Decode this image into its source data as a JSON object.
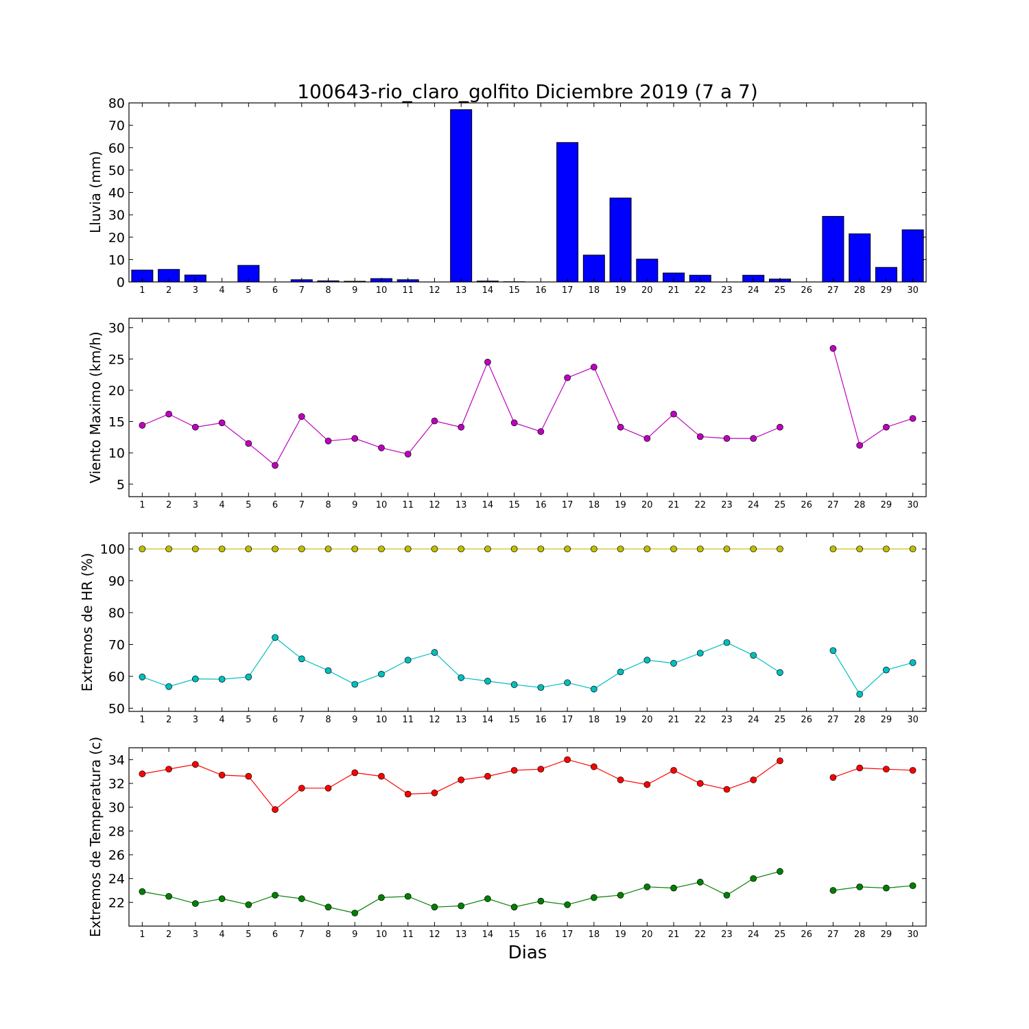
{
  "figure": {
    "title": "100643-rio_claro_golfito Diciembre 2019  (7 a 7)",
    "xlabel": "Dias"
  },
  "chart_data": [
    {
      "type": "bar",
      "ylabel": "Lluvia (mm)",
      "ylim": [
        0,
        80
      ],
      "yticks": [
        0,
        10,
        20,
        30,
        40,
        50,
        60,
        70,
        80
      ],
      "categories": [
        1,
        2,
        3,
        4,
        5,
        6,
        7,
        8,
        9,
        10,
        11,
        12,
        13,
        14,
        15,
        16,
        17,
        18,
        19,
        20,
        21,
        22,
        23,
        24,
        25,
        26,
        27,
        28,
        29,
        30
      ],
      "series": [
        {
          "color": "#0000ff",
          "values": [
            5.3,
            5.6,
            3.1,
            0,
            7.4,
            0,
            1.0,
            0.5,
            0.3,
            1.5,
            1.0,
            0,
            77.0,
            0.4,
            0.1,
            0,
            62.3,
            12.0,
            37.5,
            10.2,
            4.0,
            3.0,
            0,
            3.0,
            1.3,
            0,
            29.3,
            21.5,
            6.5,
            23.3
          ]
        }
      ]
    },
    {
      "type": "line",
      "ylabel": "Viento Maximo (km/h)",
      "ylim": [
        3,
        31.5
      ],
      "yticks": [
        5,
        10,
        15,
        20,
        25,
        30
      ],
      "x": [
        1,
        2,
        3,
        4,
        5,
        6,
        7,
        8,
        9,
        10,
        11,
        12,
        13,
        14,
        15,
        16,
        17,
        18,
        19,
        20,
        21,
        22,
        23,
        24,
        25,
        26,
        27,
        28,
        29,
        30
      ],
      "series": [
        {
          "color": "#bf00bf",
          "values": [
            14.4,
            16.2,
            14.1,
            14.8,
            11.5,
            8.0,
            15.8,
            11.9,
            12.3,
            10.8,
            9.8,
            15.1,
            14.1,
            24.5,
            14.8,
            13.4,
            22.0,
            23.7,
            14.1,
            12.3,
            16.2,
            12.6,
            12.3,
            12.3,
            14.1,
            null,
            26.7,
            11.2,
            14.1,
            15.5
          ]
        }
      ]
    },
    {
      "type": "line",
      "ylabel": "Extremos de HR (%)",
      "ylim": [
        49,
        105
      ],
      "yticks": [
        50,
        60,
        70,
        80,
        90,
        100
      ],
      "x": [
        1,
        2,
        3,
        4,
        5,
        6,
        7,
        8,
        9,
        10,
        11,
        12,
        13,
        14,
        15,
        16,
        17,
        18,
        19,
        20,
        21,
        22,
        23,
        24,
        25,
        26,
        27,
        28,
        29,
        30
      ],
      "series": [
        {
          "color": "#bfbf00",
          "values": [
            100,
            100,
            100,
            100,
            100,
            100,
            100,
            100,
            100,
            100,
            100,
            100,
            100,
            100,
            100,
            100,
            100,
            100,
            100,
            100,
            100,
            100,
            100,
            100,
            100,
            null,
            100,
            100,
            100,
            100
          ]
        },
        {
          "color": "#00bfbf",
          "values": [
            59.8,
            56.8,
            59.2,
            59.1,
            59.8,
            72.2,
            65.5,
            61.8,
            57.5,
            60.7,
            65.1,
            67.5,
            59.6,
            58.5,
            57.4,
            56.5,
            58.0,
            56.0,
            61.4,
            65.1,
            64.1,
            67.3,
            70.6,
            66.6,
            61.2,
            null,
            68.1,
            54.4,
            62.0,
            64.3
          ]
        }
      ]
    },
    {
      "type": "line",
      "ylabel": "Extremos de Temperatura (c)",
      "ylim": [
        20,
        35
      ],
      "yticks": [
        22,
        24,
        26,
        28,
        30,
        32,
        34
      ],
      "x": [
        1,
        2,
        3,
        4,
        5,
        6,
        7,
        8,
        9,
        10,
        11,
        12,
        13,
        14,
        15,
        16,
        17,
        18,
        19,
        20,
        21,
        22,
        23,
        24,
        25,
        26,
        27,
        28,
        29,
        30
      ],
      "series": [
        {
          "color": "#ff0000",
          "values": [
            32.8,
            33.2,
            33.6,
            32.7,
            32.6,
            29.8,
            31.6,
            31.6,
            32.9,
            32.6,
            31.1,
            31.2,
            32.3,
            32.6,
            33.1,
            33.2,
            34.0,
            33.4,
            32.3,
            31.9,
            33.1,
            32.0,
            31.5,
            32.3,
            33.9,
            null,
            32.5,
            33.3,
            33.2,
            33.1
          ]
        },
        {
          "color": "#008000",
          "values": [
            22.9,
            22.5,
            21.9,
            22.3,
            21.8,
            22.6,
            22.3,
            21.6,
            21.1,
            22.4,
            22.5,
            21.6,
            21.7,
            22.3,
            21.6,
            22.1,
            21.8,
            22.4,
            22.6,
            23.3,
            23.2,
            23.7,
            22.6,
            24.0,
            24.6,
            null,
            23.0,
            23.3,
            23.2,
            23.4
          ]
        }
      ]
    }
  ]
}
